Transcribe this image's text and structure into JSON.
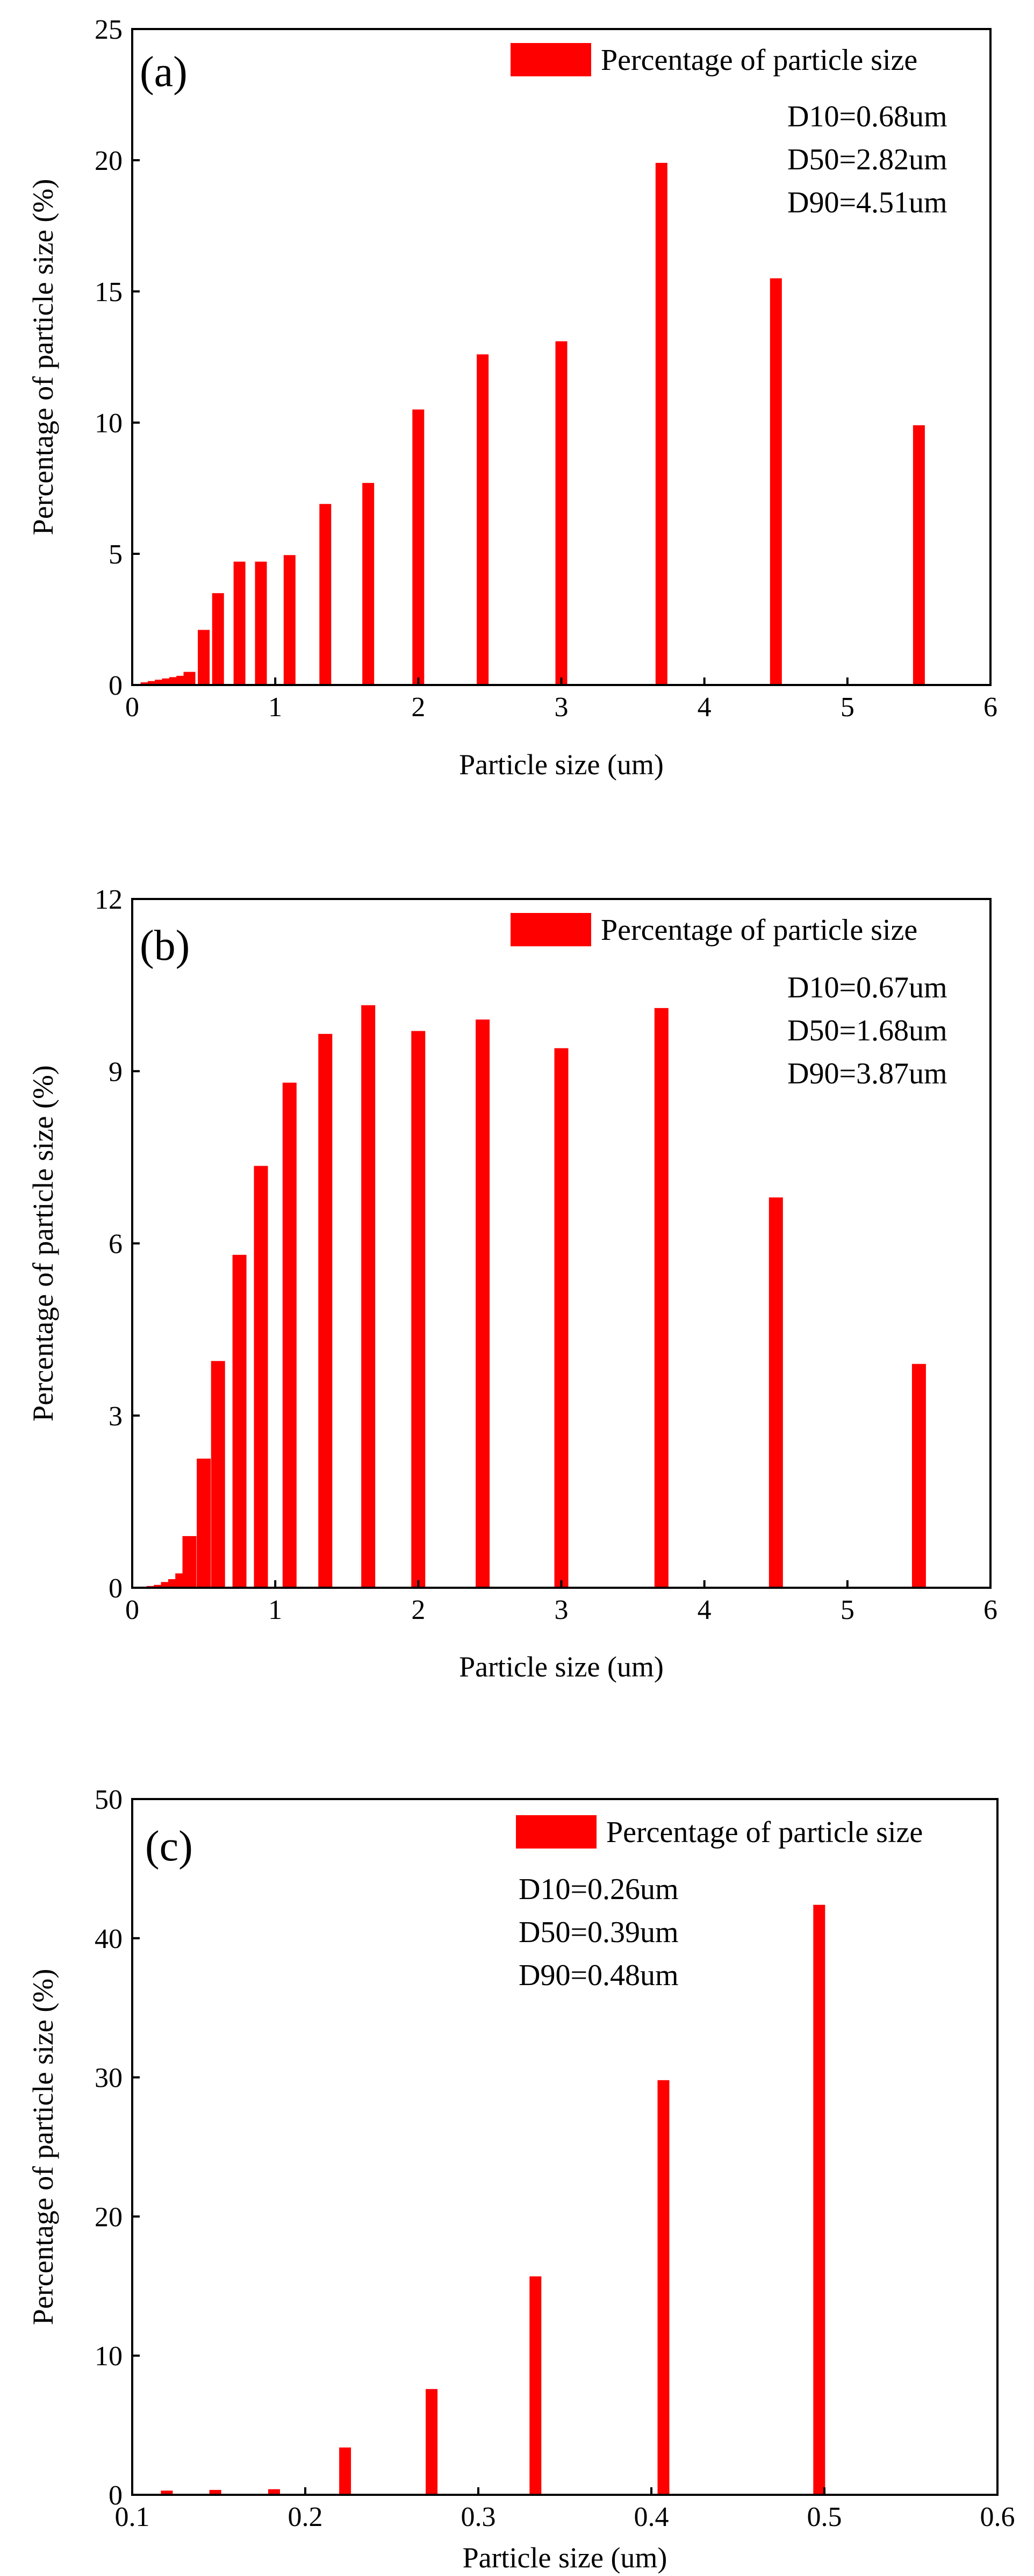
{
  "colors": {
    "bar": "#ff0000",
    "axis": "#000000",
    "background": "#ffffff"
  },
  "chart_data": [
    {
      "type": "bar",
      "panel_label": "(a)",
      "xlabel": "Particle size (um)",
      "ylabel": "Percentage of particle size (%)",
      "xlim": [
        0,
        6
      ],
      "ylim": [
        0,
        25
      ],
      "xticks": [
        "0",
        "1",
        "2",
        "3",
        "4",
        "5",
        "6"
      ],
      "yticks": [
        "0",
        "5",
        "10",
        "15",
        "20",
        "25"
      ],
      "legend": {
        "label": "Percentage of particle size",
        "position": "top-right"
      },
      "stats": [
        "D10=0.68um",
        "D50=2.82um",
        "D90=4.51um"
      ],
      "series": [
        {
          "name": "Percentage of particle size",
          "x": [
            0.1,
            0.15,
            0.2,
            0.25,
            0.3,
            0.35,
            0.4,
            0.5,
            0.6,
            0.75,
            0.9,
            1.1,
            1.35,
            1.65,
            2.0,
            2.45,
            3.0,
            3.7,
            4.5,
            5.5
          ],
          "values": [
            0.1,
            0.15,
            0.2,
            0.25,
            0.3,
            0.35,
            0.5,
            2.1,
            3.5,
            4.7,
            4.7,
            4.95,
            6.9,
            7.7,
            10.5,
            12.6,
            13.1,
            19.9,
            15.5,
            9.9
          ]
        }
      ]
    },
    {
      "type": "bar",
      "panel_label": "(b)",
      "xlabel": "Particle size (um)",
      "ylabel": "Percentage of particle size (%)",
      "xlim": [
        0,
        6
      ],
      "ylim": [
        0,
        12
      ],
      "xticks": [
        "0",
        "1",
        "2",
        "3",
        "4",
        "5",
        "6"
      ],
      "yticks": [
        "0",
        "3",
        "6",
        "9",
        "12"
      ],
      "legend": {
        "label": "Percentage of particle size",
        "position": "top-right"
      },
      "stats": [
        "D10=0.67um",
        "D50=1.68um",
        "D90=3.87um"
      ],
      "series": [
        {
          "name": "Percentage of particle size",
          "x": [
            0.1,
            0.15,
            0.2,
            0.25,
            0.3,
            0.35,
            0.4,
            0.5,
            0.6,
            0.75,
            0.9,
            1.1,
            1.35,
            1.65,
            2.0,
            2.45,
            3.0,
            3.7,
            4.5,
            5.5
          ],
          "values": [
            0.02,
            0.03,
            0.05,
            0.1,
            0.15,
            0.25,
            0.9,
            2.25,
            3.95,
            5.8,
            7.35,
            8.8,
            9.65,
            10.15,
            9.7,
            9.9,
            9.4,
            10.1,
            6.8,
            3.9
          ]
        }
      ]
    },
    {
      "type": "bar",
      "panel_label": "(c)",
      "xlabel": "Particle size (um)",
      "ylabel": "Percentage of particle size (%)",
      "xlim": [
        0.1,
        0.6
      ],
      "ylim": [
        0,
        50
      ],
      "xticks": [
        "0.1",
        "0.2",
        "0.3",
        "0.4",
        "0.5",
        "0.6"
      ],
      "yticks": [
        "0",
        "10",
        "20",
        "30",
        "40",
        "50"
      ],
      "legend": {
        "label": "Percentage of particle size",
        "position": "top-right"
      },
      "stats": [
        "D10=0.26um",
        "D50=0.39um",
        "D90=0.48um"
      ],
      "series": [
        {
          "name": "Percentage of particle size",
          "x": [
            0.12,
            0.148,
            0.182,
            0.223,
            0.273,
            0.333,
            0.407,
            0.497
          ],
          "values": [
            0.3,
            0.35,
            0.4,
            3.4,
            7.6,
            15.7,
            29.8,
            42.4
          ]
        }
      ]
    }
  ]
}
